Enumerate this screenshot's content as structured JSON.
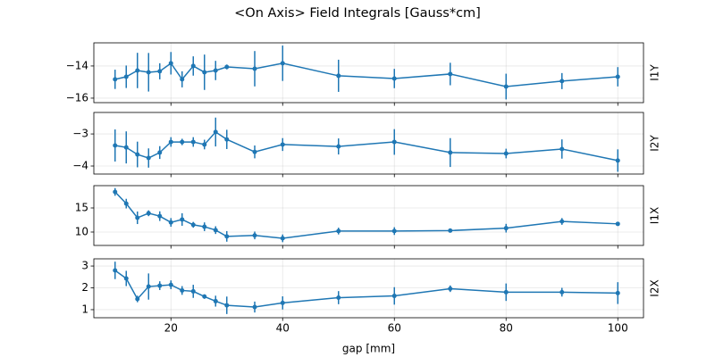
{
  "title": "<On Axis> Field Integrals [Gauss*cm]",
  "chart_data": [
    {
      "type": "errorbar",
      "ylabel": "I1Y",
      "color": "#1f77b4",
      "grid": true,
      "x": [
        10,
        12,
        14,
        16,
        18,
        20,
        22,
        24,
        26,
        28,
        30,
        35,
        40,
        50,
        60,
        70,
        80,
        90,
        100
      ],
      "values": [
        -14.83,
        -14.67,
        -14.28,
        -14.39,
        -14.33,
        -13.83,
        -14.83,
        -14.0,
        -14.39,
        -14.28,
        -14.06,
        -14.17,
        -13.83,
        -14.61,
        -14.78,
        -14.5,
        -15.28,
        -14.94,
        -14.67
      ],
      "errors": [
        0.6,
        0.7,
        1.1,
        1.2,
        0.5,
        0.7,
        0.5,
        0.6,
        1.1,
        0.6,
        0.15,
        1.1,
        1.1,
        1.0,
        0.6,
        0.7,
        0.8,
        0.5,
        0.6
      ],
      "xlim": [
        6.2,
        104.6
      ],
      "xticks": [
        20,
        40,
        60,
        80,
        100
      ],
      "ylim": [
        -16.28,
        -12.56
      ],
      "yticks": [
        {
          "value": -16,
          "label": "−16"
        },
        {
          "value": -14,
          "label": "−14"
        }
      ]
    },
    {
      "type": "errorbar",
      "ylabel": "I2Y",
      "color": "#1f77b4",
      "grid": true,
      "x": [
        10,
        12,
        14,
        16,
        18,
        20,
        22,
        24,
        26,
        28,
        30,
        35,
        40,
        50,
        60,
        70,
        80,
        90,
        100
      ],
      "values": [
        -3.36,
        -3.42,
        -3.64,
        -3.75,
        -3.58,
        -3.25,
        -3.25,
        -3.25,
        -3.33,
        -2.94,
        -3.17,
        -3.56,
        -3.33,
        -3.39,
        -3.25,
        -3.58,
        -3.61,
        -3.47,
        -3.83
      ],
      "errors": [
        0.5,
        0.5,
        0.4,
        0.3,
        0.2,
        0.15,
        0.1,
        0.15,
        0.15,
        0.45,
        0.3,
        0.2,
        0.2,
        0.25,
        0.4,
        0.45,
        0.15,
        0.3,
        0.35
      ],
      "xlim": [
        6.2,
        104.6
      ],
      "xticks": [
        20,
        40,
        60,
        80,
        100
      ],
      "ylim": [
        -4.25,
        -2.33
      ],
      "yticks": [
        {
          "value": -4,
          "label": "−4"
        },
        {
          "value": -3,
          "label": "−3"
        }
      ]
    },
    {
      "type": "errorbar",
      "ylabel": "I1X",
      "color": "#1f77b4",
      "grid": true,
      "x": [
        10,
        12,
        14,
        16,
        18,
        20,
        22,
        24,
        26,
        28,
        30,
        35,
        40,
        50,
        60,
        70,
        80,
        90,
        100
      ],
      "values": [
        18.33,
        15.9,
        12.96,
        13.9,
        13.3,
        12.0,
        12.6,
        11.5,
        11.1,
        10.4,
        9.1,
        9.3,
        8.7,
        10.2,
        10.2,
        10.3,
        10.8,
        12.2,
        11.7
      ],
      "errors": [
        0.8,
        1.0,
        1.3,
        0.6,
        1.0,
        0.9,
        1.3,
        0.6,
        0.9,
        0.8,
        1.1,
        0.8,
        0.8,
        0.7,
        0.8,
        0.3,
        0.9,
        0.7,
        0.4
      ],
      "xlim": [
        6.2,
        104.6
      ],
      "xticks": [
        20,
        40,
        60,
        80,
        100
      ],
      "ylim": [
        7.22,
        19.63
      ],
      "yticks": [
        10,
        15
      ]
    },
    {
      "type": "errorbar",
      "ylabel": "I2X",
      "xlabel": "gap [mm]",
      "color": "#1f77b4",
      "grid": true,
      "x": [
        10,
        12,
        14,
        16,
        18,
        20,
        22,
        24,
        26,
        28,
        30,
        35,
        40,
        50,
        60,
        70,
        80,
        90,
        100
      ],
      "values": [
        2.8,
        2.43,
        1.49,
        2.06,
        2.1,
        2.14,
        1.88,
        1.84,
        1.6,
        1.39,
        1.2,
        1.12,
        1.31,
        1.55,
        1.63,
        1.96,
        1.8,
        1.8,
        1.76
      ],
      "errors": [
        0.4,
        0.35,
        0.15,
        0.6,
        0.2,
        0.2,
        0.2,
        0.3,
        0.1,
        0.25,
        0.4,
        0.25,
        0.3,
        0.3,
        0.4,
        0.15,
        0.4,
        0.2,
        0.5
      ],
      "xlim": [
        6.2,
        104.6
      ],
      "xticks": [
        20,
        40,
        60,
        80,
        100
      ],
      "ylim": [
        0.63,
        3.33
      ],
      "yticks": [
        1,
        2,
        3
      ]
    }
  ]
}
